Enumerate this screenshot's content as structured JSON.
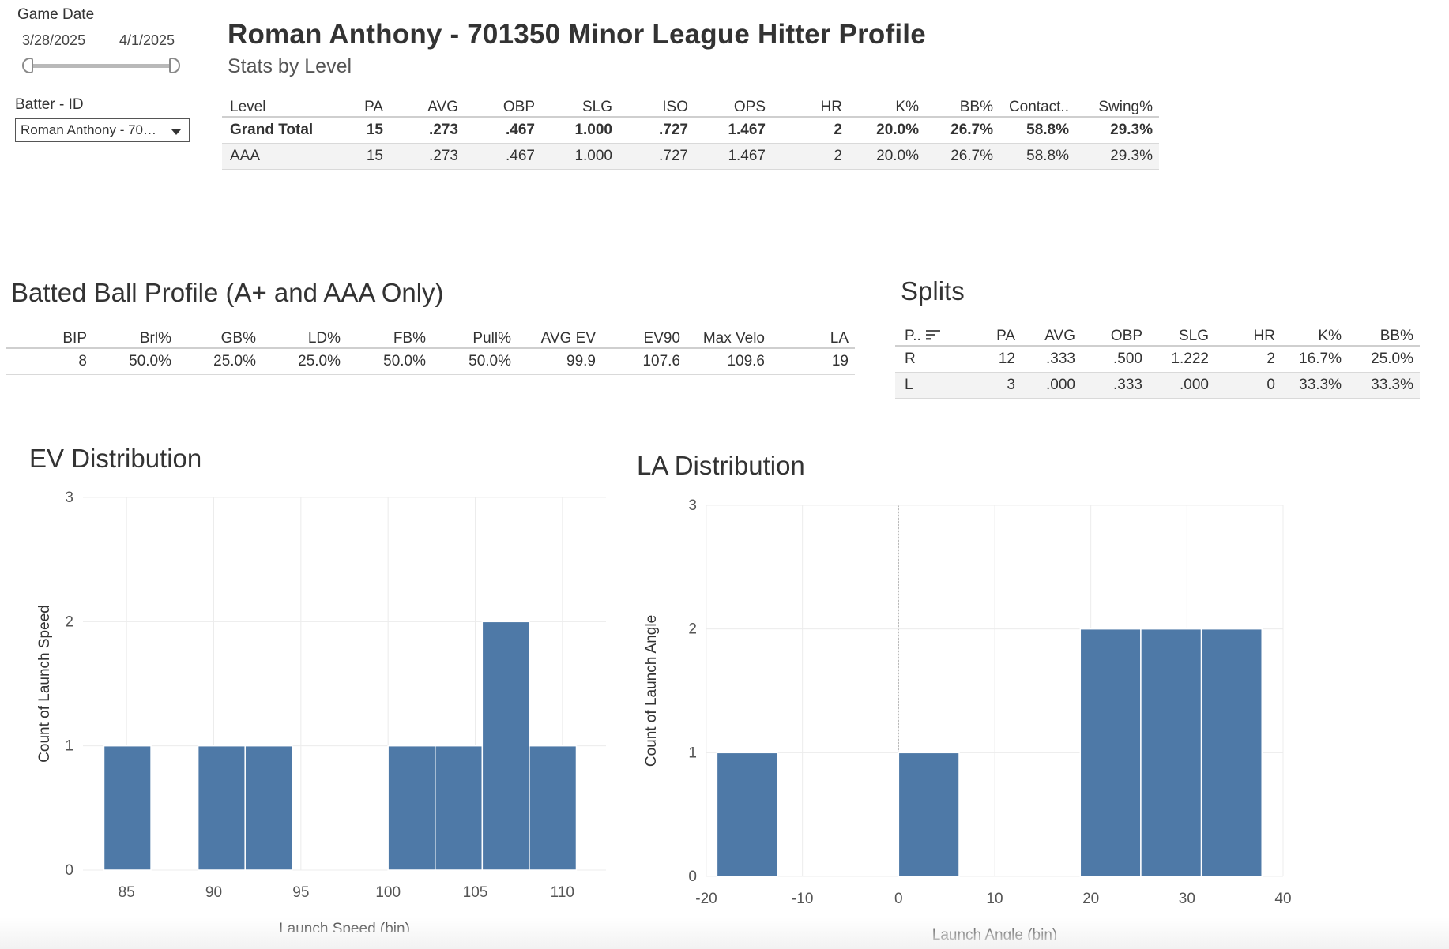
{
  "filters": {
    "game_date": {
      "title": "Game Date",
      "start": "3/28/2025",
      "end": "4/1/2025"
    },
    "batter": {
      "title": "Batter - ID",
      "selected": "Roman Anthony - 70…"
    }
  },
  "header": {
    "title": "Roman Anthony - 701350 Minor League Hitter Profile",
    "subtitle": "Stats by Level"
  },
  "stats_by_level": {
    "columns": [
      "Level",
      "PA",
      "AVG",
      "OBP",
      "SLG",
      "ISO",
      "OPS",
      "HR",
      "K%",
      "BB%",
      "Contact..",
      "Swing%"
    ],
    "rows": [
      [
        "Grand Total",
        "15",
        ".273",
        ".467",
        "1.000",
        ".727",
        "1.467",
        "2",
        "20.0%",
        "26.7%",
        "58.8%",
        "29.3%"
      ],
      [
        "AAA",
        "15",
        ".273",
        ".467",
        "1.000",
        ".727",
        "1.467",
        "2",
        "20.0%",
        "26.7%",
        "58.8%",
        "29.3%"
      ]
    ]
  },
  "batted_ball": {
    "title": "Batted Ball Profile (A+ and AAA Only)",
    "columns": [
      "BIP",
      "Brl%",
      "GB%",
      "LD%",
      "FB%",
      "Pull%",
      "AVG EV",
      "EV90",
      "Max Velo",
      "LA"
    ],
    "rows": [
      [
        "8",
        "50.0%",
        "25.0%",
        "25.0%",
        "50.0%",
        "50.0%",
        "99.9",
        "107.6",
        "109.6",
        "19"
      ]
    ]
  },
  "splits": {
    "title": "Splits",
    "columns": [
      "P..",
      "PA",
      "AVG",
      "OBP",
      "SLG",
      "HR",
      "K%",
      "BB%"
    ],
    "sort_icon": "sort-descending-icon",
    "rows": [
      [
        "R",
        "12",
        ".333",
        ".500",
        "1.222",
        "2",
        "16.7%",
        "25.0%"
      ],
      [
        "L",
        "3",
        ".000",
        ".333",
        ".000",
        "0",
        "33.3%",
        "33.3%"
      ]
    ]
  },
  "colors": {
    "bar": "#4e79a7",
    "grid": "#ececec",
    "axis_text": "#555555"
  },
  "chart_data": [
    {
      "type": "bar",
      "title": "EV Distribution",
      "xlabel": "Launch Speed (bin)",
      "ylabel": "Count of Launch Speed",
      "bin_width": 2.7,
      "bins": [
        {
          "start": 83.7,
          "count": 1
        },
        {
          "start": 89.1,
          "count": 1
        },
        {
          "start": 91.8,
          "count": 1
        },
        {
          "start": 100.0,
          "count": 1
        },
        {
          "start": 102.7,
          "count": 1
        },
        {
          "start": 105.4,
          "count": 2
        },
        {
          "start": 108.1,
          "count": 1
        }
      ],
      "xlim": [
        82.5,
        112.5
      ],
      "ylim": [
        0,
        3
      ],
      "xticks": [
        85,
        90,
        95,
        100,
        105,
        110
      ],
      "yticks": [
        0,
        1,
        2,
        3
      ]
    },
    {
      "type": "bar",
      "title": "LA Distribution",
      "xlabel": "Launch Angle (bin)",
      "ylabel": "Count of Launch Angle",
      "bin_width": 6.3,
      "bins": [
        {
          "start": -18.9,
          "count": 1
        },
        {
          "start": 0.0,
          "count": 1
        },
        {
          "start": 18.9,
          "count": 2
        },
        {
          "start": 25.2,
          "count": 2
        },
        {
          "start": 31.5,
          "count": 2
        }
      ],
      "xlim": [
        -20,
        40
      ],
      "ylim": [
        0,
        3
      ],
      "xticks": [
        -20,
        -10,
        0,
        10,
        20,
        30,
        40
      ],
      "yticks": [
        0,
        1,
        2,
        3
      ]
    }
  ]
}
